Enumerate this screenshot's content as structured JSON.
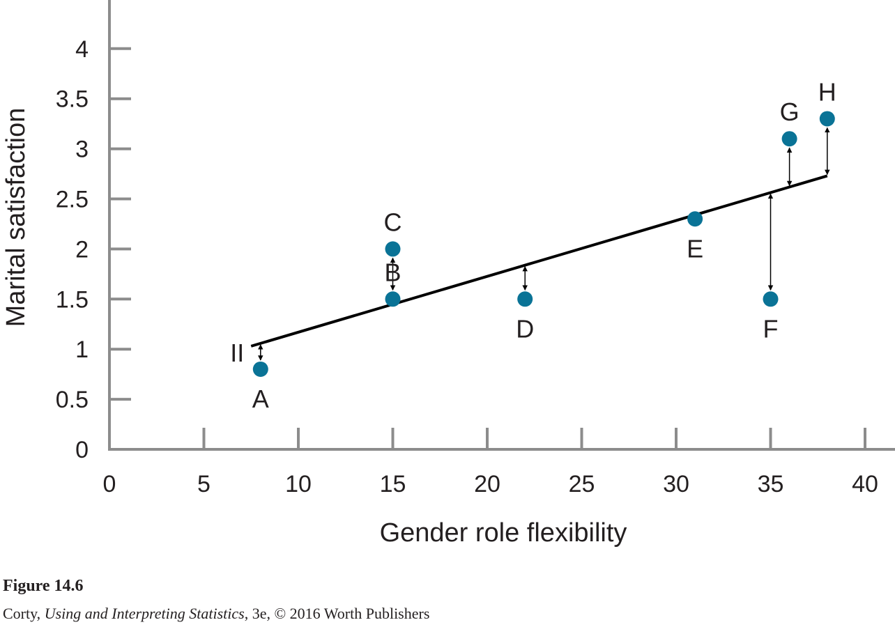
{
  "chart_data": {
    "type": "scatter",
    "xlabel": "Gender role flexibility",
    "ylabel": "Marital satisfaction",
    "xlim": [
      0,
      40
    ],
    "ylim": [
      0,
      4.4
    ],
    "x_ticks": [
      0,
      5,
      10,
      15,
      20,
      25,
      30,
      35,
      40
    ],
    "y_ticks": [
      0,
      0.5,
      1,
      1.5,
      2,
      2.5,
      3,
      3.5,
      4
    ],
    "y_tick_labels": [
      "0",
      "0.5",
      "1",
      "1.5",
      "2",
      "2.5",
      "3",
      "3.5",
      "4"
    ],
    "points": [
      {
        "label": "A",
        "x": 8,
        "y": 0.8
      },
      {
        "label": "B",
        "x": 15,
        "y": 1.5
      },
      {
        "label": "C",
        "x": 15,
        "y": 2.0
      },
      {
        "label": "D",
        "x": 22,
        "y": 1.5
      },
      {
        "label": "E",
        "x": 31,
        "y": 2.3
      },
      {
        "label": "F",
        "x": 35,
        "y": 1.5
      },
      {
        "label": "G",
        "x": 36,
        "y": 3.1
      },
      {
        "label": "H",
        "x": 38,
        "y": 3.3
      }
    ],
    "regression_line": {
      "x": [
        7.5,
        38
      ],
      "y": [
        1.03,
        2.73
      ]
    },
    "regression_line_label": "II",
    "residual_arrows_at_x": [
      8,
      15,
      22,
      35,
      36,
      38
    ],
    "colors": {
      "points": "#0a7396",
      "line": "#000000",
      "axis": "#8c8c8c",
      "text": "#231f20"
    }
  },
  "caption": {
    "figure_number": "Figure 14.6",
    "author": "Corty, ",
    "book_title": "Using and Interpreting Statistics",
    "edition_and_copyright": ", 3e, © 2016 Worth Publishers"
  }
}
